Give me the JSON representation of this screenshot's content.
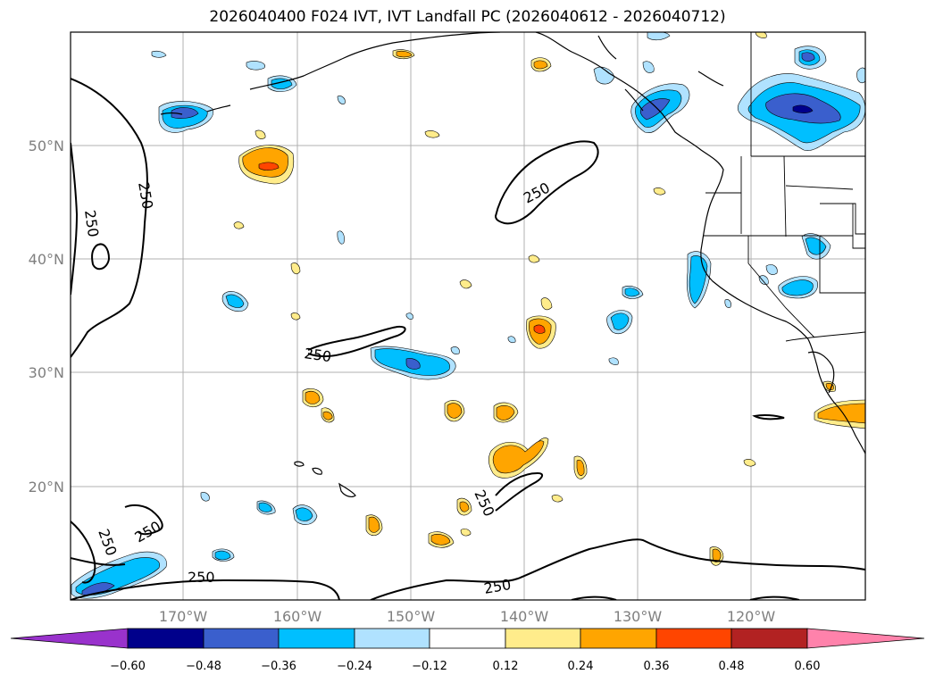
{
  "title": "2026040400 F024 IVT, IVT Landfall PC (2026040612 - 2026040712)",
  "latitude_labels": [
    "50°N",
    "40°N",
    "30°N",
    "20°N"
  ],
  "longitude_labels": [
    "170°W",
    "160°W",
    "150°W",
    "140°W",
    "130°W",
    "120°W"
  ],
  "contour_value_label": "250",
  "colorbar": {
    "ticks": [
      "−0.60",
      "−0.48",
      "−0.36",
      "−0.24",
      "−0.12",
      "0.12",
      "0.24",
      "0.36",
      "0.48",
      "0.60"
    ],
    "colors": [
      "#9932cc",
      "#00008b",
      "#3a5fcd",
      "#00bfff",
      "#b0e2ff",
      "#ffffff",
      "#ffec8b",
      "#ffa500",
      "#ff4500",
      "#b22222",
      "#ff82ab"
    ]
  },
  "colors": {
    "neg_strong": "#3a5fcd",
    "neg_mid": "#00bfff",
    "neg_weak": "#b0e2ff",
    "neg_extreme": "#00008b",
    "pos_weak": "#ffec8b",
    "pos_mid": "#ffa500",
    "pos_strong": "#ff4500",
    "grid": "#b0b0b0"
  }
}
